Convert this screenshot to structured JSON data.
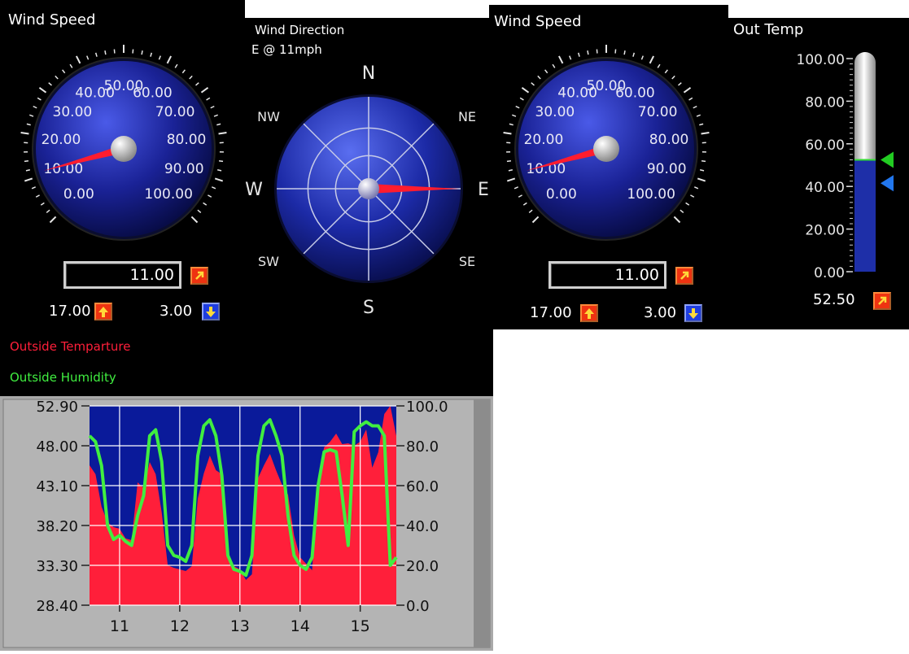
{
  "wind_speed_1": {
    "title": "Wind Speed",
    "dial_labels": [
      "0.00",
      "10.00",
      "20.00",
      "30.00",
      "40.00",
      "50.00",
      "60.00",
      "70.00",
      "80.00",
      "90.00",
      "100.00"
    ],
    "value": "11.00",
    "max_value": "17.00",
    "min_value": "3.00",
    "needle_value": 11
  },
  "wind_direction": {
    "title": "Wind Direction",
    "subtitle": "E @ 11mph",
    "compass_labels": {
      "n": "N",
      "ne": "NE",
      "e": "E",
      "se": "SE",
      "s": "S",
      "sw": "SW",
      "w": "W",
      "nw": "NW"
    },
    "heading": "E"
  },
  "wind_speed_2": {
    "title": "Wind Speed",
    "dial_labels": [
      "0.00",
      "10.00",
      "20.00",
      "30.00",
      "40.00",
      "50.00",
      "60.00",
      "70.00",
      "80.00",
      "90.00",
      "100.00"
    ],
    "value": "11.00",
    "max_value": "17.00",
    "min_value": "3.00",
    "needle_value": 11
  },
  "out_temp": {
    "title": "Out Temp",
    "scale": [
      "100.00",
      "80.00",
      "60.00",
      "40.00",
      "20.00",
      "0.00"
    ],
    "value": "52.50",
    "fill_level": 52.5,
    "high_marker": 52.5,
    "low_marker": 41.5,
    "colors": {
      "fill": "#1e2fa8",
      "empty": "#d8d8d8",
      "high_marker": "#22cc22",
      "low_marker": "#2277ee"
    }
  },
  "legend": {
    "temperature": "Outside Temparture",
    "humidity": "Outside Humidity",
    "temperature_color": "#ff1f3a",
    "humidity_color": "#40ee40"
  },
  "chart_data": {
    "type": "area",
    "x_ticks": [
      "11",
      "12",
      "13",
      "14",
      "15"
    ],
    "y_left_ticks": [
      "52.90",
      "48.00",
      "43.10",
      "38.20",
      "33.30",
      "28.40"
    ],
    "y_right_ticks": [
      "100.0",
      "80.0",
      "60.0",
      "40.0",
      "20.0",
      "0.0"
    ],
    "ylim_left": [
      28.4,
      52.9
    ],
    "ylim_right": [
      0,
      100
    ],
    "xlim": [
      10.5,
      15.6
    ],
    "grid": true,
    "background": "#0a1a9a",
    "series": [
      {
        "name": "Outside Temparture",
        "axis": "left",
        "color": "#ff1f3a",
        "x": [
          10.5,
          10.6,
          10.7,
          10.8,
          10.9,
          11.0,
          11.1,
          11.2,
          11.3,
          11.4,
          11.5,
          11.6,
          11.7,
          11.8,
          11.9,
          12.0,
          12.1,
          12.2,
          12.3,
          12.4,
          12.5,
          12.6,
          12.7,
          12.8,
          12.9,
          13.0,
          13.1,
          13.2,
          13.3,
          13.4,
          13.5,
          13.6,
          13.7,
          13.8,
          13.9,
          14.0,
          14.1,
          14.2,
          14.3,
          14.4,
          14.5,
          14.6,
          14.7,
          14.8,
          14.9,
          15.0,
          15.1,
          15.2,
          15.3,
          15.4,
          15.5,
          15.6
        ],
        "y": [
          45.6,
          44.5,
          40.5,
          38.6,
          38.0,
          37.8,
          36.6,
          36.4,
          43.5,
          42.8,
          46.0,
          44.5,
          39.8,
          33.3,
          33.0,
          32.8,
          32.6,
          33.2,
          41.5,
          44.6,
          46.8,
          45.0,
          44.5,
          34.0,
          33.2,
          32.8,
          31.5,
          32.2,
          44.0,
          45.6,
          47.0,
          45.0,
          43.2,
          42.0,
          37.0,
          34.3,
          33.5,
          32.7,
          44.0,
          47.8,
          48.5,
          49.5,
          48.2,
          48.3,
          48.0,
          48.5,
          50.0,
          45.3,
          47.2,
          51.9,
          52.9,
          49.2
        ]
      },
      {
        "name": "Outside Humidity",
        "axis": "right",
        "color": "#40ee40",
        "x": [
          10.5,
          10.6,
          10.7,
          10.8,
          10.9,
          11.0,
          11.1,
          11.2,
          11.3,
          11.4,
          11.5,
          11.6,
          11.7,
          11.8,
          11.9,
          12.0,
          12.1,
          12.2,
          12.3,
          12.4,
          12.5,
          12.6,
          12.7,
          12.8,
          12.9,
          13.0,
          13.1,
          13.2,
          13.3,
          13.4,
          13.5,
          13.6,
          13.7,
          13.8,
          13.9,
          14.0,
          14.1,
          14.2,
          14.3,
          14.4,
          14.5,
          14.6,
          14.7,
          14.8,
          14.9,
          15.0,
          15.1,
          15.2,
          15.3,
          15.4,
          15.5,
          15.6
        ],
        "y": [
          85,
          82,
          70,
          40,
          33,
          35,
          32,
          30,
          45,
          55,
          85,
          88,
          72,
          30,
          25,
          24,
          22,
          30,
          75,
          90,
          93,
          85,
          65,
          25,
          18,
          17,
          15,
          25,
          75,
          90,
          93,
          85,
          75,
          45,
          25,
          20,
          18,
          24,
          60,
          77,
          78,
          77,
          55,
          30,
          87,
          90,
          92,
          90,
          90,
          85,
          20,
          24
        ]
      }
    ]
  }
}
